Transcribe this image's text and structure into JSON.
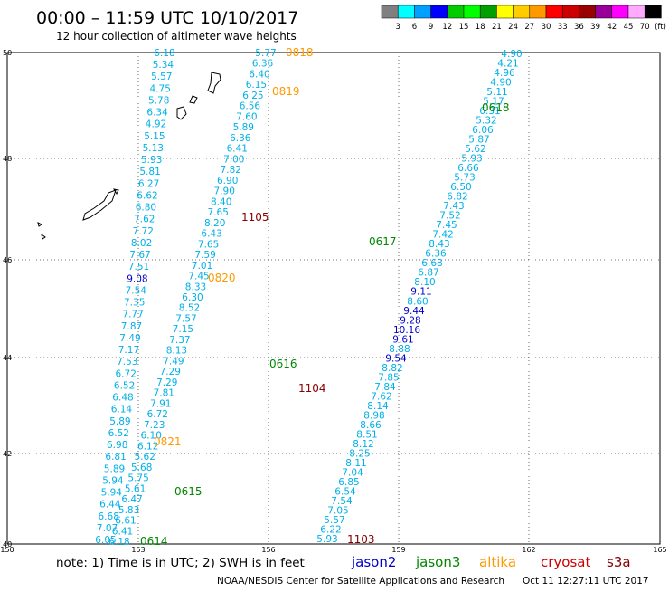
{
  "title": "00:00 – 11:59 UTC 10/10/2017",
  "subtitle": "12 hour collection of altimeter wave heights",
  "colorbar": {
    "unit": "(ft)",
    "labels": [
      "3",
      "6",
      "9",
      "12",
      "15",
      "18",
      "21",
      "24",
      "27",
      "30",
      "33",
      "36",
      "39",
      "42",
      "45",
      "70"
    ],
    "colors": [
      "#808080",
      "#00ffff",
      "#00a0ff",
      "#0000ff",
      "#00cc00",
      "#00ff00",
      "#00a000",
      "#ffff00",
      "#ffcc00",
      "#ff9900",
      "#ff0000",
      "#cc0000",
      "#990000",
      "#990099",
      "#ff00ff",
      "#ffaaff",
      "#000000"
    ]
  },
  "axes": {
    "lon_labels": [
      "150",
      "153",
      "156",
      "159",
      "162",
      "165"
    ],
    "lat_labels": [
      "50",
      "48",
      "46",
      "44",
      "42",
      "40"
    ]
  },
  "colors": {
    "wave_text": "#00b0e8",
    "wave_high": "#0000cc",
    "label_orange": "#ff9900",
    "label_green": "#008800",
    "label_darkred": "#880000",
    "grid": "#444444"
  },
  "pass_labels": [
    {
      "text": "0818",
      "color": "#ff9900"
    },
    {
      "text": "0819",
      "color": "#ff9900"
    },
    {
      "text": "0618",
      "color": "#008800"
    },
    {
      "text": "1105",
      "color": "#880000"
    },
    {
      "text": "0617",
      "color": "#008800"
    },
    {
      "text": "0820",
      "color": "#ff9900"
    },
    {
      "text": "0616",
      "color": "#008800"
    },
    {
      "text": "1104",
      "color": "#880000"
    },
    {
      "text": "0821",
      "color": "#ff9900"
    },
    {
      "text": "0615",
      "color": "#008800"
    },
    {
      "text": "0614",
      "color": "#008800"
    },
    {
      "text": "1103",
      "color": "#880000"
    }
  ],
  "tracks": {
    "track_0818": [
      "6.18",
      "5.34",
      "5.57",
      "4.75",
      "5.78",
      "6.34",
      "4.92",
      "5.15",
      "5.13",
      "5.93",
      "5.81",
      "6.27",
      "6.62",
      "6.80",
      "7.62",
      "7.72",
      "8.02",
      "7.67",
      "7.51",
      "9.08",
      "7.54",
      "7.35",
      "7.77",
      "7.87",
      "7.49",
      "7.17",
      "7.53",
      "6.72",
      "6.52",
      "6.48",
      "6.14",
      "5.89",
      "6.52",
      "6.98",
      "6.81",
      "5.89",
      "5.94",
      "5.94",
      "6.44",
      "6.68",
      "7.07",
      "6.05"
    ],
    "track_0819": [
      "5.77",
      "6.36",
      "6.40",
      "6.15",
      "6.25",
      "6.56",
      "7.60",
      "5.89",
      "6.36",
      "6.41",
      "7.00",
      "7.82",
      "6.90",
      "7.90",
      "8.40",
      "7.65",
      "8.20",
      "6.43",
      "7.65",
      "7.59",
      "7.01",
      "7.45",
      "8.33",
      "6.30",
      "8.52",
      "7.57",
      "7.15",
      "7.37",
      "8.13",
      "7.49",
      "7.29",
      "7.29",
      "7.81",
      "7.91",
      "6.72",
      "7.23",
      "6.10",
      "6.12",
      "5.62",
      "5.68",
      "5.75",
      "5.61",
      "6.47",
      "5.83",
      "6.61",
      "6.41",
      "6.18"
    ],
    "track_0618": [
      "4.90",
      "4.21",
      "4.96",
      "4.90",
      "5.11",
      "5.17",
      "6.31",
      "5.32",
      "6.06",
      "5.87",
      "5.62",
      "5.93",
      "6.66",
      "5.73",
      "6.50",
      "6.82",
      "7.43",
      "7.52",
      "7.45",
      "7.42",
      "8.43",
      "6.36",
      "6.68",
      "6.87",
      "8.10",
      "9.11",
      "8.60",
      "9.44",
      "9.28",
      "10.16",
      "9.61",
      "8.88",
      "9.54",
      "8.82",
      "7.85",
      "7.84",
      "7.62",
      "8.14",
      "8.98",
      "8.66",
      "8.51",
      "8.12",
      "8.25",
      "8.11",
      "7.04",
      "6.85",
      "6.54",
      "7.54",
      "7.05",
      "5.57",
      "6.22",
      "5.93"
    ]
  },
  "footer": {
    "note": "note: 1) Time is in UTC; 2) SWH is in feet",
    "legend": [
      {
        "name": "jason2",
        "color": "#0000cc"
      },
      {
        "name": "jason3",
        "color": "#008800"
      },
      {
        "name": "altika",
        "color": "#ff9900"
      },
      {
        "name": "cryosat",
        "color": "#cc0000"
      },
      {
        "name": "s3a",
        "color": "#880000"
      }
    ],
    "credit": "NOAA/NESDIS Center for Satellite Applications and Research",
    "timestamp": "Oct 11 12:27:11 UTC 2017"
  }
}
